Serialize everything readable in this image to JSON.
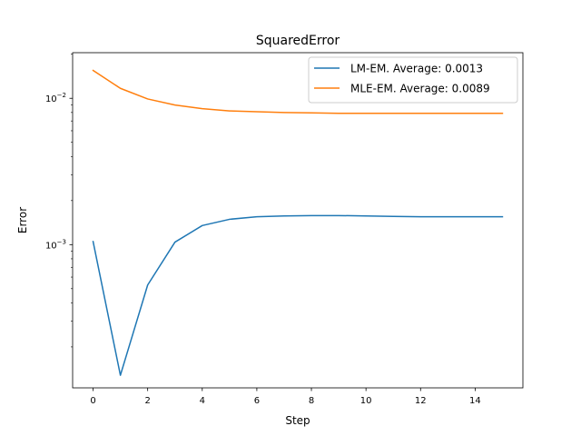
{
  "chart_data": {
    "type": "line",
    "title": "SquaredError",
    "xlabel": "Step",
    "ylabel": "Error",
    "yscale": "log",
    "xlim": [
      -0.75,
      15.75
    ],
    "ylim": [
      0.000105,
      0.0205
    ],
    "x_ticks": [
      0,
      2,
      4,
      6,
      8,
      10,
      12,
      14
    ],
    "y_ticks": [
      {
        "value": 0.001,
        "base": "10",
        "exponent": "−3"
      },
      {
        "value": 0.01,
        "base": "10",
        "exponent": "−2"
      }
    ],
    "grid": false,
    "legend_position": "top-right",
    "x": [
      0,
      1,
      2,
      3,
      4,
      5,
      6,
      7,
      8,
      9,
      10,
      11,
      12,
      13,
      14,
      15
    ],
    "series": [
      {
        "name": "LM-EM. Average: 0.0013",
        "color": "#1f77b4",
        "values": [
          0.00105,
          0.000128,
          0.00053,
          0.00104,
          0.00135,
          0.00149,
          0.00155,
          0.00157,
          0.00158,
          0.00158,
          0.00157,
          0.00156,
          0.00155,
          0.00155,
          0.00155,
          0.00155
        ]
      },
      {
        "name": "MLE-EM. Average: 0.0089",
        "color": "#ff7f0e",
        "values": [
          0.0155,
          0.0117,
          0.0099,
          0.009,
          0.0085,
          0.0082,
          0.0081,
          0.008,
          0.00795,
          0.0079,
          0.0079,
          0.0079,
          0.0079,
          0.0079,
          0.0079,
          0.0079
        ]
      }
    ]
  }
}
